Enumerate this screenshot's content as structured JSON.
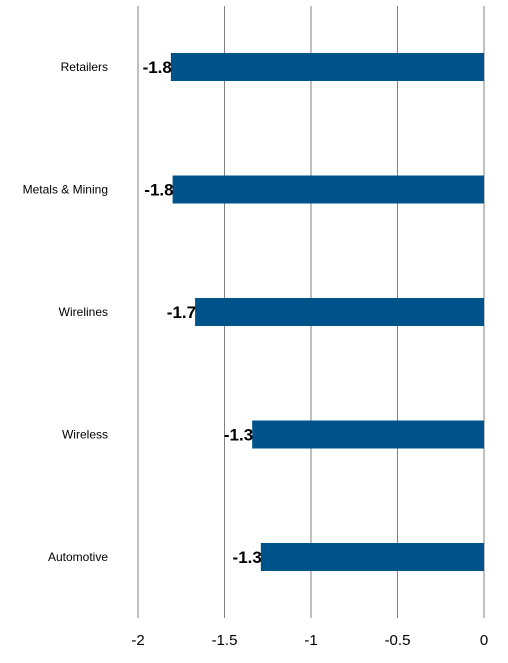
{
  "chart_data": {
    "type": "bar",
    "orientation": "horizontal",
    "categories": [
      "Retailers",
      "Metals & Mining",
      "Wirelines",
      "Wireless",
      "Automotive"
    ],
    "values": [
      -1.81,
      -1.8,
      -1.67,
      -1.34,
      -1.29
    ],
    "data_labels": [
      "-1.8",
      "-1.8",
      "-1.7",
      "-1.3",
      "-1.3"
    ],
    "x_ticks": [
      -2,
      -1.5,
      -1,
      -0.5,
      0
    ],
    "x_tick_labels": [
      "-2",
      "-1.5",
      "-1",
      "-0.5",
      "0"
    ],
    "xlim": [
      -2,
      0
    ],
    "grid": "vertical",
    "legend": "none",
    "title": "",
    "xlabel": "",
    "ylabel": "",
    "bar_color": "#00538A",
    "grid_color": "#808080"
  }
}
